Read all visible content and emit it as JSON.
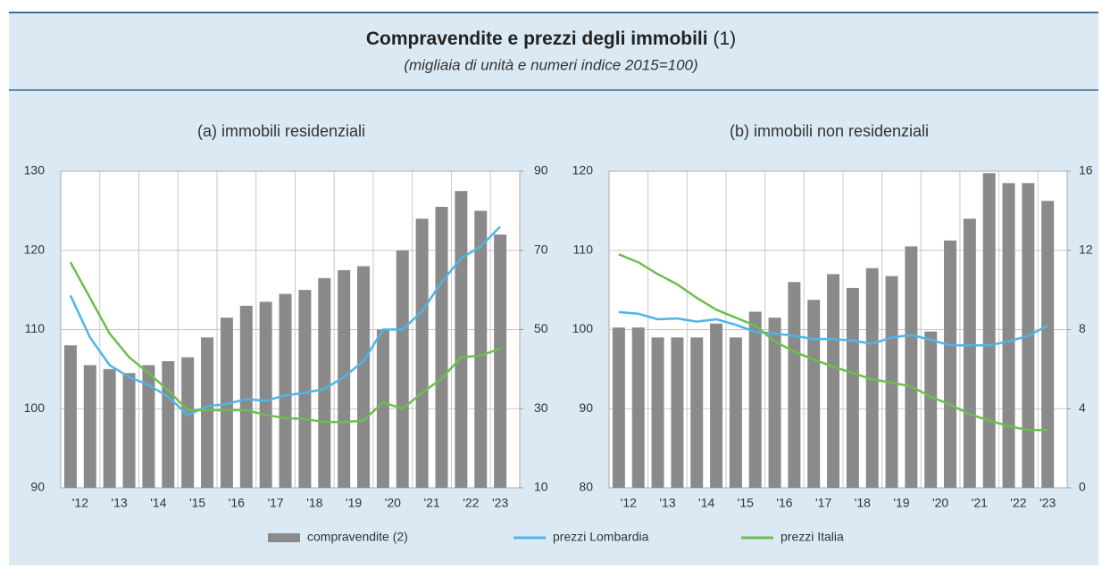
{
  "header": {
    "title": "Compravendite e prezzi degli immobili",
    "note": "(1)",
    "subtitle": "(migliaia di unità e numeri indice 2015=100)"
  },
  "chart_data": [
    {
      "type": "combo",
      "title": "(a) immobili residenziali",
      "categories": [
        "'12",
        null,
        "'13",
        null,
        "'14",
        null,
        "'15",
        null,
        "'16",
        null,
        "'17",
        null,
        "'18",
        null,
        "'19",
        null,
        "'20",
        null,
        "'21",
        null,
        "'22",
        null,
        "'23"
      ],
      "ylim": [
        90,
        130
      ],
      "yticks": [
        90,
        100,
        110,
        120,
        130
      ],
      "y2lim": [
        10,
        90
      ],
      "y2ticks": [
        10,
        30,
        50,
        70,
        90
      ],
      "grid": true,
      "series": [
        {
          "name": "compravendite (2)",
          "type": "bar",
          "axis": "y2",
          "color": "#8a8a8a",
          "values": [
            46,
            41,
            40,
            39,
            41,
            42,
            43,
            48,
            53,
            56,
            57,
            59,
            60,
            63,
            65,
            66,
            50,
            70,
            78,
            81,
            85,
            80,
            74
          ]
        },
        {
          "name": "prezzi Lombardia",
          "type": "line",
          "color": "#4fb4e8",
          "values": [
            114.3,
            109,
            105.5,
            104,
            103,
            101.5,
            99.2,
            100.3,
            100.6,
            101.2,
            101,
            101.7,
            102,
            102.5,
            104,
            106,
            110,
            110,
            112.3,
            116,
            119,
            120.5,
            123
          ]
        },
        {
          "name": "prezzi Italia",
          "type": "line",
          "color": "#6cbf4e",
          "values": [
            118.5,
            114,
            109.5,
            106.5,
            104.5,
            102.3,
            99.8,
            99.8,
            99.8,
            99.8,
            99.2,
            98.8,
            98.7,
            98.3,
            98.3,
            98.5,
            100.8,
            100,
            102,
            103.8,
            106.5,
            106.7,
            107.6
          ]
        }
      ]
    },
    {
      "type": "combo",
      "title": "(b) immobili non residenziali",
      "categories": [
        "'12",
        null,
        "'13",
        null,
        "'14",
        null,
        "'15",
        null,
        "'16",
        null,
        "'17",
        null,
        "'18",
        null,
        "'19",
        null,
        "'20",
        null,
        "'21",
        null,
        "'22",
        null,
        "'23"
      ],
      "ylim": [
        80,
        120
      ],
      "yticks": [
        80,
        90,
        100,
        110,
        120
      ],
      "y2lim": [
        0,
        16
      ],
      "y2ticks": [
        0,
        4,
        8,
        12,
        16
      ],
      "grid": true,
      "series": [
        {
          "type": "bar",
          "axis": "y2",
          "color": "#8a8a8a",
          "values": [
            8.1,
            8.1,
            7.6,
            7.6,
            7.6,
            8.3,
            7.6,
            8.9,
            8.6,
            10.4,
            9.5,
            10.8,
            10.1,
            11.1,
            10.7,
            12.2,
            7.9,
            12.5,
            13.6,
            15.9,
            15.4,
            15.4,
            14.5
          ]
        },
        {
          "type": "line",
          "color": "#4fb4e8",
          "values": [
            102.2,
            102,
            101.3,
            101.4,
            101,
            101.3,
            100.6,
            99.7,
            99.5,
            99.2,
            98.8,
            98.8,
            98.6,
            98.2,
            99,
            99.3,
            98.7,
            98,
            98,
            98,
            98.5,
            99.2,
            100.5
          ]
        },
        {
          "type": "line",
          "color": "#6cbf4e",
          "values": [
            109.5,
            108.5,
            107,
            105.7,
            104,
            102.5,
            101.5,
            100.5,
            98.5,
            97.2,
            96.2,
            95.3,
            94.5,
            93.7,
            93.3,
            92.8,
            91.5,
            90.5,
            89.3,
            88.5,
            87.8,
            87.3,
            87.3
          ]
        }
      ]
    }
  ]
}
